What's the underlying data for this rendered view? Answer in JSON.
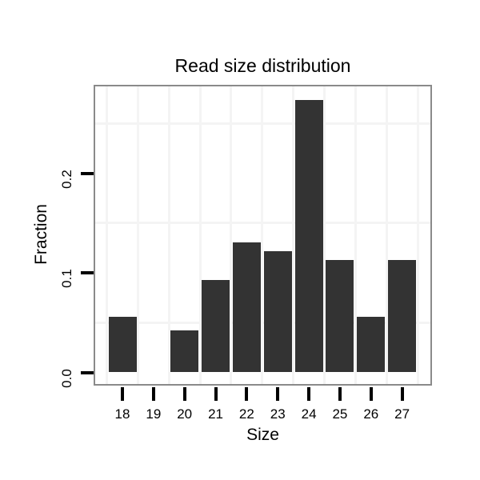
{
  "title": "Read size distribution",
  "chart_data": {
    "type": "bar",
    "title": "Read size distribution",
    "xlabel": "Size",
    "ylabel": "Fraction",
    "categories": [
      "18",
      "19",
      "20",
      "21",
      "22",
      "23",
      "24",
      "25",
      "26",
      "27"
    ],
    "values": [
      0.056,
      0,
      0.042,
      0.093,
      0.131,
      0.122,
      0.274,
      0.113,
      0.056,
      0.113
    ],
    "y_tick_labels": [
      "0.0",
      "0.1",
      "0.2"
    ],
    "y_tick_values": [
      0,
      0.1,
      0.2
    ],
    "minor_gridlines_y": [
      0.05,
      0.15,
      0.25
    ],
    "ylim": [
      0,
      0.289
    ],
    "grid": "minor gridlines only, light gray on white panel",
    "legend": "none",
    "colors": {
      "bar": "#333333",
      "grid": "#f4f4f4",
      "panel_border": "#8a8a8a",
      "background": "#ffffff",
      "tick": "#000000",
      "text": "#000000"
    }
  }
}
